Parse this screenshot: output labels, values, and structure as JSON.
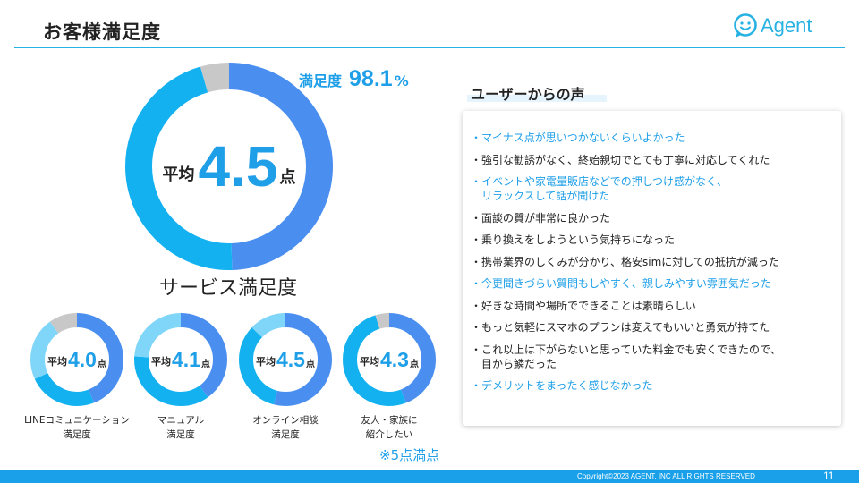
{
  "colors": {
    "accent": "#1e9fe8",
    "teal": "#27b2e3",
    "donut_dark": "#4a8ff0",
    "donut_cyan": "#13b1f0",
    "donut_light": "#7fd6f9",
    "donut_gray": "#c8c8c8",
    "text": "#222222",
    "footer": "#1aa0e8"
  },
  "header": {
    "title": "お客様満足度",
    "logo_text": "Agent",
    "logo_icon": "smile-chat-icon"
  },
  "summary": {
    "prefix": "平均",
    "score": "4.5",
    "suffix": "点",
    "satisfaction_label": "満足度",
    "satisfaction_value": "98.1",
    "satisfaction_unit": "%"
  },
  "service_title": "サービス満足度",
  "chart_data": [
    {
      "type": "pie",
      "title": "",
      "center_text": "平均4.5点",
      "slices": [
        {
          "value": 49.5,
          "color": "#4a8ff0"
        },
        {
          "value": 46.0,
          "color": "#13b1f0"
        },
        {
          "value": 4.5,
          "color": "#c8c8c8"
        }
      ]
    },
    {
      "type": "pie",
      "label": "LINEコミュニケーション\n満足度",
      "center_prefix": "平均",
      "center_value": "4.0",
      "center_suffix": "点",
      "slices": [
        {
          "value": 44,
          "color": "#4a8ff0"
        },
        {
          "value": 24,
          "color": "#13b1f0"
        },
        {
          "value": 22,
          "color": "#7fd6f9"
        },
        {
          "value": 10,
          "color": "#c8c8c8"
        }
      ]
    },
    {
      "type": "pie",
      "label": "マニュアル\n満足度",
      "center_prefix": "平均",
      "center_value": "4.1",
      "center_suffix": "点",
      "slices": [
        {
          "value": 40,
          "color": "#4a8ff0"
        },
        {
          "value": 36,
          "color": "#13b1f0"
        },
        {
          "value": 24,
          "color": "#7fd6f9"
        }
      ]
    },
    {
      "type": "pie",
      "label": "オンライン相談\n満足度",
      "center_prefix": "平均",
      "center_value": "4.5",
      "center_suffix": "点",
      "slices": [
        {
          "value": 54,
          "color": "#4a8ff0"
        },
        {
          "value": 33,
          "color": "#13b1f0"
        },
        {
          "value": 13,
          "color": "#7fd6f9"
        }
      ]
    },
    {
      "type": "pie",
      "label": "友人・家族に\n紹介したい",
      "center_prefix": "平均",
      "center_value": "4.3",
      "center_suffix": "点",
      "slices": [
        {
          "value": 44,
          "color": "#4a8ff0"
        },
        {
          "value": 51,
          "color": "#13b1f0"
        },
        {
          "value": 5,
          "color": "#c8c8c8"
        }
      ]
    }
  ],
  "note": "※5点満点",
  "voices": {
    "title": "ユーザーからの声",
    "items": [
      {
        "text": "・マイナス点が思いつかないくらいよかった",
        "highlight": true
      },
      {
        "text": "・強引な勧誘がなく、終始親切でとても丁寧に対応してくれた",
        "highlight": false
      },
      {
        "text": "・イベントや家電量販店などでの押しつけ感がなく、\n　リラックスして話が聞けた",
        "highlight": true
      },
      {
        "text": "・面談の質が非常に良かった",
        "highlight": false
      },
      {
        "text": "・乗り換えをしようという気持ちになった",
        "highlight": false
      },
      {
        "text": "・携帯業界のしくみが分かり、格安simに対しての抵抗が減った",
        "highlight": false
      },
      {
        "text": "・今更聞きづらい質問もしやすく、親しみやすい雰囲気だった",
        "highlight": true
      },
      {
        "text": "・好きな時間や場所でできることは素晴らしい",
        "highlight": false
      },
      {
        "text": "・もっと気軽にスマホのプランは変えてもいいと勇気が持てた",
        "highlight": false
      },
      {
        "text": "・これ以上は下がらないと思っていた料金でも安くできたので、\n　目から鱗だった",
        "highlight": false
      },
      {
        "text": "・デメリットをまったく感じなかった",
        "highlight": true
      }
    ]
  },
  "footer": {
    "copyright": "Copyright©2023  AGENT, INC ALL RIGHTS RESERVED",
    "page": "11"
  }
}
